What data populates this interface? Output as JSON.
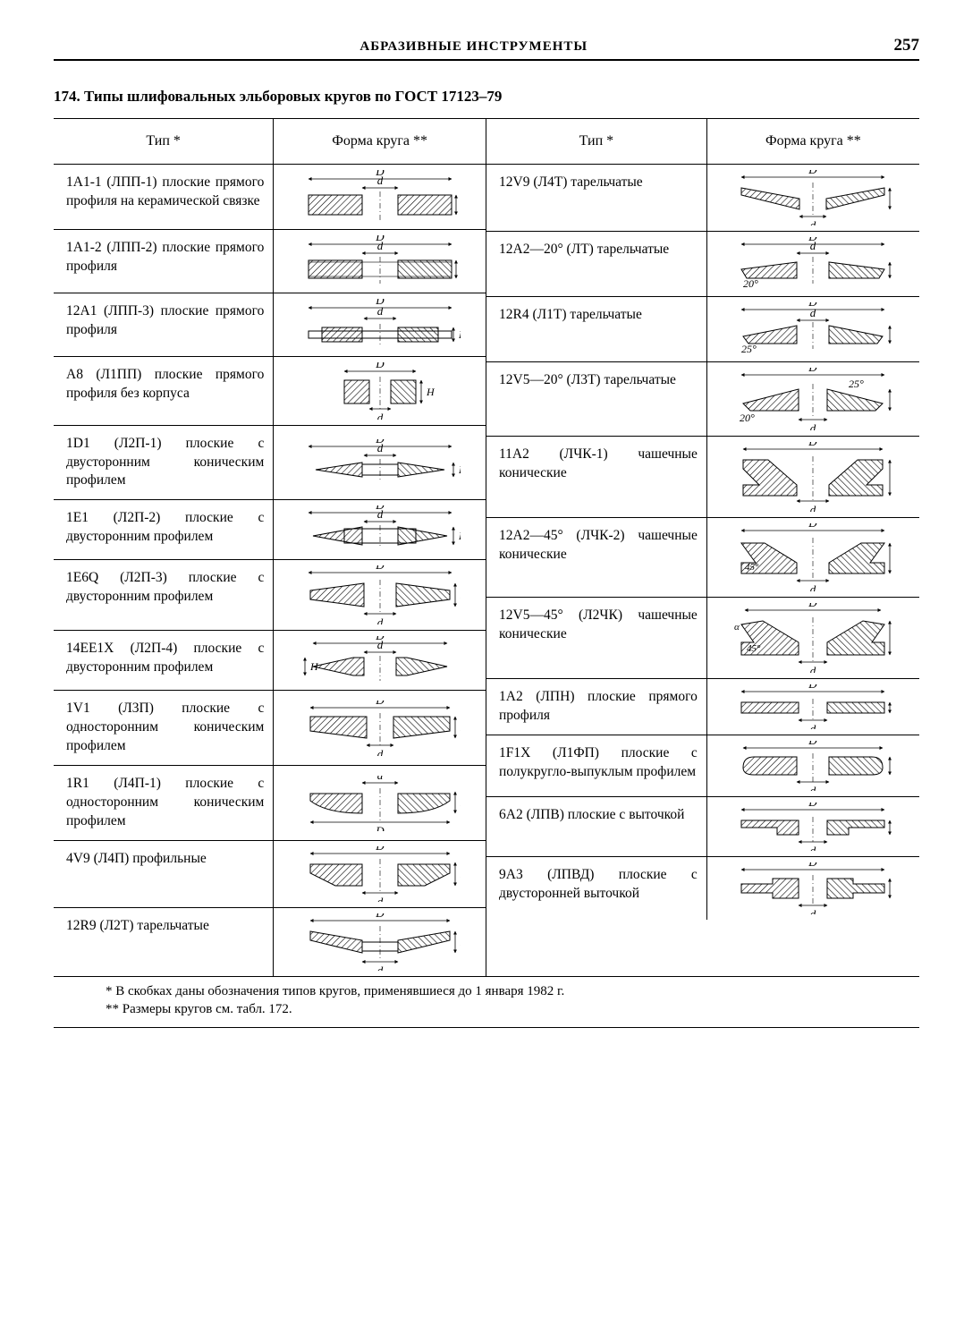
{
  "page_number": "257",
  "running_head": "АБРАЗИВНЫЕ ИНСТРУМЕНТЫ",
  "caption": "174. Типы шлифовальных эльборовых кругов по ГОСТ 17123–79",
  "header_type": "Тип *",
  "header_shape": "Форма круга **",
  "dim_label_D": "D",
  "dim_label_d": "d",
  "rows_left": [
    {
      "t": "1A1-1 (ЛПП-1) плоские прямого профиля на керамической связке",
      "shape": "flat_ceramic"
    },
    {
      "t": "1A1-2 (ЛПП-2) плоские прямого профиля",
      "shape": "flat"
    },
    {
      "t": "12A1 (ЛПП-3) плоские прямого профиля",
      "shape": "flat_thin"
    },
    {
      "t": "A8 (Л1ПП) плоские прямого профиля без корпуса",
      "shape": "flat_nobody"
    },
    {
      "t": "1D1 (Л2П-1) плоские с двусторонним коническим профилем",
      "shape": "biconic1"
    },
    {
      "t": "1E1 (Л2П-2) плоские с двусторонним профилем",
      "shape": "biconic2"
    },
    {
      "t": "1E6Q (Л2П-3) плоские с двусторонним профилем",
      "shape": "biconic3"
    },
    {
      "t": "14EE1X (Л2П-4) плоские с двусторонним профилем",
      "shape": "biconic4"
    },
    {
      "t": "1V1 (Л3П) плоские с односторонним коническим профилем",
      "shape": "one_side_conic"
    },
    {
      "t": "1R1 (Л4П-1) плоские с односторонним коническим профилем",
      "shape": "one_side_round"
    },
    {
      "t": "4V9 (Л4П) профильные",
      "shape": "profiled"
    },
    {
      "t": "12R9 (Л2Т) тарельчатые",
      "shape": "dish1"
    }
  ],
  "rows_right": [
    {
      "t": "12V9 (Л4Т) тарельчатые",
      "shape": "dish2"
    },
    {
      "t": "12A2—20° (ЛТ) тарельчатые",
      "shape": "dish_20",
      "angle": "20°"
    },
    {
      "t": "12R4 (Л1Т) тарельчатые",
      "shape": "dish_25",
      "angle": "25°"
    },
    {
      "t": "12V5—20° (Л3Т) тарельчатые",
      "shape": "dish_20_25",
      "angle": "20°",
      "angle2": "25°"
    },
    {
      "t": "11A2 (ЛЧК-1) чашечные конические",
      "shape": "cup1"
    },
    {
      "t": "12A2—45° (ЛЧК-2) чашечные конические",
      "shape": "cup_45",
      "angle": "45°"
    },
    {
      "t": "12V5—45° (Л2ЧК) чашечные конические",
      "shape": "cup_45b",
      "angle": "45°"
    },
    {
      "t": "1A2 (ЛПН) плоские прямого профиля",
      "shape": "flat_thin2"
    },
    {
      "t": "1F1X (Л1ФП) плоские с полукругло-выпуклым профилем",
      "shape": "convex"
    },
    {
      "t": "6A2 (ЛПВ) плоские с выточкой",
      "shape": "recessed1"
    },
    {
      "t": "9A3 (ЛПВД) плоские с двусторонней выточкой",
      "shape": "recessed2"
    }
  ],
  "footnote1": "* В скобках даны обозначения типов кругов, применявшиеся до 1 января 1982 г.",
  "footnote2": "** Размеры кругов см. табл. 172.",
  "colors": {
    "stroke": "#000000",
    "hatch": "#000000",
    "body_fill": "#cccccc"
  }
}
